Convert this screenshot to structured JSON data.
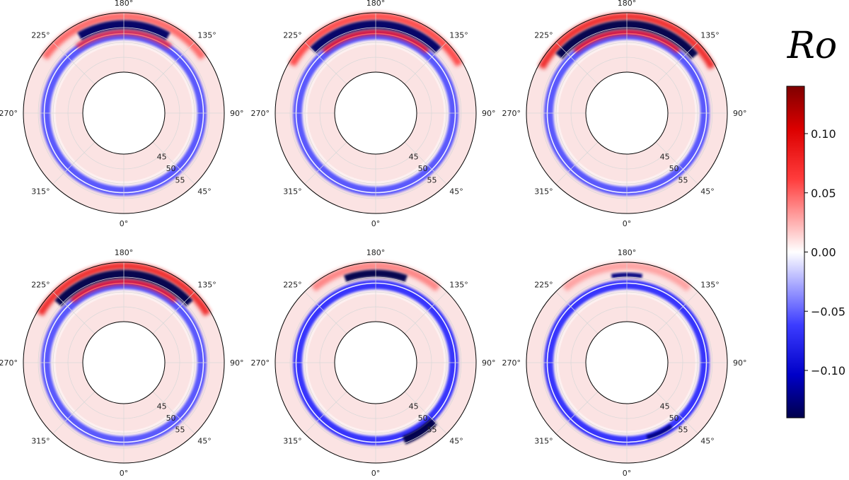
{
  "chart_data": {
    "type": "heatmap",
    "projection": "polar",
    "colormap": "seismic",
    "colors": {
      "negative": "#00007f",
      "zero": "#ffffff",
      "positive": "#7f0000"
    },
    "colorbar": {
      "title": "Ro",
      "range": [
        -0.14,
        0.14
      ],
      "ticks": [
        0.1,
        0.05,
        0.0,
        -0.05,
        -0.1
      ],
      "tick_labels": [
        "0.10",
        "0.05",
        "0.00",
        "−0.05",
        "−0.10"
      ]
    },
    "angular_ticks": [
      "180°",
      "135°",
      "90°",
      "45°",
      "0°",
      "315°",
      "270°",
      "225°"
    ],
    "radial_ticks": [
      "45",
      "50",
      "55"
    ],
    "radial_range": [
      40,
      60
    ],
    "grid": true,
    "panels": [
      {
        "row": 0,
        "col": 0,
        "features": [
          {
            "kind": "patch",
            "sign": "negative",
            "value": -0.13,
            "r": [
              54.5,
              57.5
            ],
            "theta_deg": [
              150,
              210
            ]
          },
          {
            "kind": "patch",
            "sign": "positive",
            "value": 0.05,
            "r": [
              57.5,
              60
            ],
            "theta_deg": [
              125,
              235
            ]
          },
          {
            "kind": "patch",
            "sign": "positive",
            "value": 0.06,
            "r": [
              52.5,
              54.5
            ],
            "theta_deg": [
              145,
              215
            ]
          },
          {
            "kind": "ring",
            "sign": "negative",
            "value": -0.05,
            "r": 52.5
          }
        ]
      },
      {
        "row": 0,
        "col": 1,
        "features": [
          {
            "kind": "patch",
            "sign": "negative",
            "value": -0.13,
            "r": [
              54.5,
              57.5
            ],
            "theta_deg": [
              135,
              225
            ]
          },
          {
            "kind": "patch",
            "sign": "positive",
            "value": 0.06,
            "r": [
              57.5,
              60
            ],
            "theta_deg": [
              120,
              240
            ]
          },
          {
            "kind": "patch",
            "sign": "positive",
            "value": 0.07,
            "r": [
              52.5,
              54.5
            ],
            "theta_deg": [
              140,
              220
            ]
          },
          {
            "kind": "ring",
            "sign": "negative",
            "value": -0.05,
            "r": 52.5
          }
        ]
      },
      {
        "row": 0,
        "col": 2,
        "features": [
          {
            "kind": "patch",
            "sign": "negative",
            "value": -0.14,
            "r": [
              54.5,
              57.5
            ],
            "theta_deg": [
              130,
              230
            ]
          },
          {
            "kind": "patch",
            "sign": "positive",
            "value": 0.08,
            "r": [
              57.5,
              60
            ],
            "theta_deg": [
              118,
              242
            ]
          },
          {
            "kind": "patch",
            "sign": "positive",
            "value": 0.07,
            "r": [
              52.5,
              54.5
            ],
            "theta_deg": [
              140,
              220
            ]
          },
          {
            "kind": "ring",
            "sign": "negative",
            "value": -0.05,
            "r": 52.5
          }
        ]
      },
      {
        "row": 1,
        "col": 0,
        "features": [
          {
            "kind": "patch",
            "sign": "negative",
            "value": -0.14,
            "r": [
              54.5,
              57.5
            ],
            "theta_deg": [
              132,
              228
            ]
          },
          {
            "kind": "patch",
            "sign": "positive",
            "value": 0.08,
            "r": [
              57.5,
              60
            ],
            "theta_deg": [
              120,
              240
            ]
          },
          {
            "kind": "patch",
            "sign": "positive",
            "value": 0.07,
            "r": [
              52.5,
              54.5
            ],
            "theta_deg": [
              140,
              220
            ]
          },
          {
            "kind": "ring",
            "sign": "negative",
            "value": -0.05,
            "r": 52.5
          }
        ]
      },
      {
        "row": 1,
        "col": 1,
        "features": [
          {
            "kind": "patch",
            "sign": "negative",
            "value": -0.14,
            "r": [
              55,
              57.5
            ],
            "theta_deg": [
              160,
              200
            ]
          },
          {
            "kind": "patch",
            "sign": "negative",
            "value": -0.14,
            "r": [
              52.5,
              55.5
            ],
            "theta_deg": [
              20,
              45
            ]
          },
          {
            "kind": "patch",
            "sign": "positive",
            "value": 0.04,
            "r": [
              57.5,
              60
            ],
            "theta_deg": [
              140,
              220
            ]
          },
          {
            "kind": "ring",
            "sign": "negative",
            "value": -0.06,
            "r": 52.5
          }
        ]
      },
      {
        "row": 1,
        "col": 2,
        "features": [
          {
            "kind": "patch",
            "sign": "negative",
            "value": -0.12,
            "r": [
              55,
              56.5
            ],
            "theta_deg": [
              170,
              190
            ]
          },
          {
            "kind": "patch",
            "sign": "negative",
            "value": -0.12,
            "r": [
              51.5,
              53
            ],
            "theta_deg": [
              15,
              35
            ]
          },
          {
            "kind": "patch",
            "sign": "positive",
            "value": 0.03,
            "r": [
              57.5,
              60
            ],
            "theta_deg": [
              140,
              220
            ]
          },
          {
            "kind": "ring",
            "sign": "negative",
            "value": -0.06,
            "r": 52.5
          }
        ]
      }
    ]
  }
}
